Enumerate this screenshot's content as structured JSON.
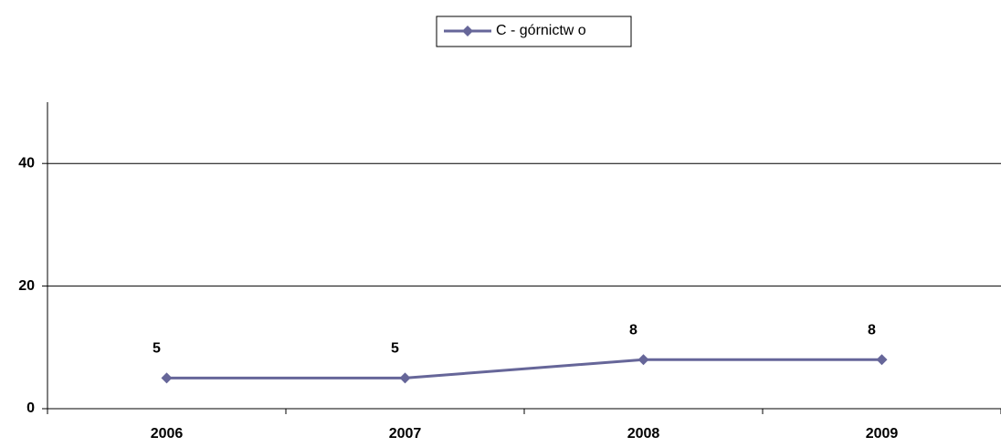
{
  "chart_data": {
    "type": "line",
    "categories": [
      "2006",
      "2007",
      "2008",
      "2009"
    ],
    "series": [
      {
        "name": "C - górnictw o",
        "color": "#666699",
        "values": [
          5,
          5,
          8,
          8
        ]
      }
    ],
    "ylim": [
      0,
      50
    ],
    "yticks": [
      0,
      20,
      40
    ],
    "grid": true,
    "legend": "top"
  }
}
